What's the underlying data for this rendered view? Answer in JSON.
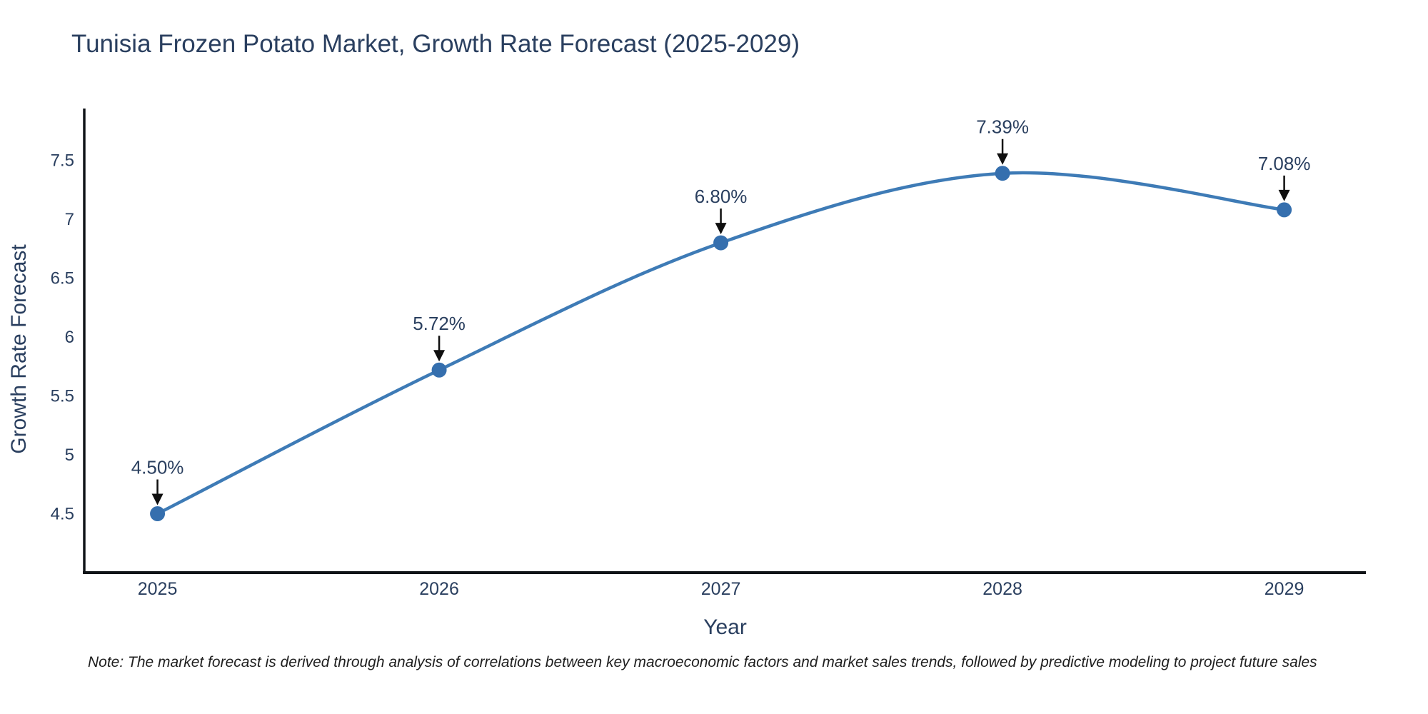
{
  "title": "Tunisia Frozen Potato Market, Growth Rate Forecast (2025-2029)",
  "note": "Note: The market forecast is derived through analysis of correlations between key macroeconomic factors and market sales trends, followed by predictive modeling to project future sales",
  "chart_data": {
    "type": "line",
    "line_shape": "spline",
    "title": "Tunisia Frozen Potato Market, Growth Rate Forecast (2025-2029)",
    "xlabel": "Year",
    "ylabel": "Growth Rate Forecast",
    "x": [
      2025,
      2026,
      2027,
      2028,
      2029
    ],
    "values": [
      4.5,
      5.72,
      6.8,
      7.39,
      7.08
    ],
    "point_labels": [
      "4.50%",
      "5.72%",
      "6.80%",
      "7.39%",
      "7.08%"
    ],
    "x_tick_labels": [
      "2025",
      "2026",
      "2027",
      "2028",
      "2029"
    ],
    "y_ticks": [
      4.5,
      5,
      5.5,
      6,
      6.5,
      7,
      7.5
    ],
    "y_tick_labels": [
      "4.5",
      "5",
      "5.5",
      "6",
      "6.5",
      "7",
      "7.5"
    ],
    "xlim": [
      2024.74,
      2029.29
    ],
    "ylim": [
      4.0,
      7.94
    ],
    "grid": false,
    "legend": "none",
    "annotation_style": "value label with black down arrow to marker",
    "colors": {
      "line": "#3e7bb6",
      "marker": "#356fae",
      "axis": "#101418",
      "text": "#2a3f5f",
      "arrow": "#0f0f0f",
      "note_text": "#1f1f1f",
      "background": "#ffffff"
    }
  }
}
